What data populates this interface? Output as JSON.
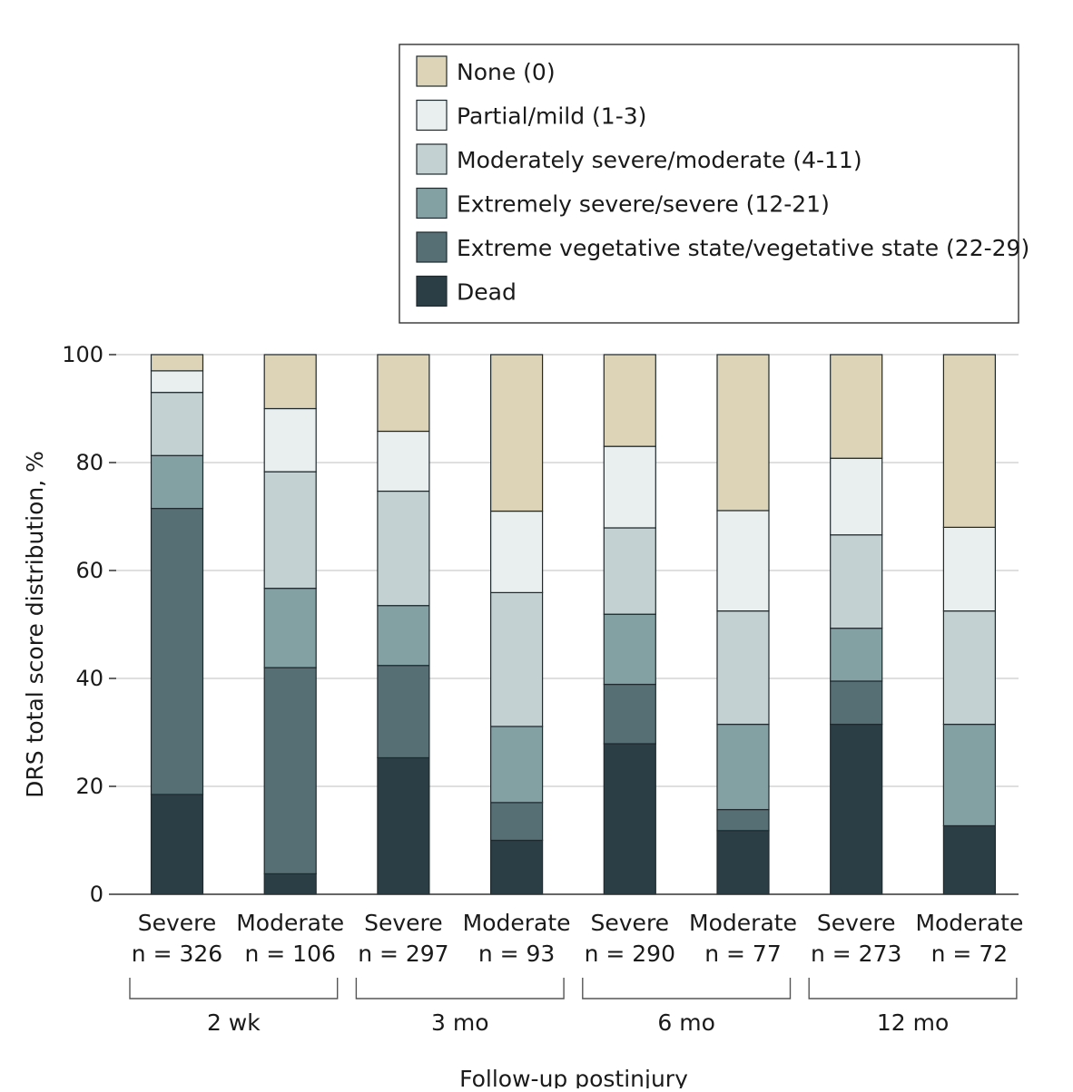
{
  "chart_data": {
    "type": "bar",
    "stacked": true,
    "ylabel": "DRS total score distribution, %",
    "xlabel": "Follow-up postinjury",
    "ylim": [
      0,
      100
    ],
    "yticks": [
      0,
      20,
      40,
      60,
      80,
      100
    ],
    "grid": true,
    "legend_position": "top-right",
    "groups": [
      "2 wk",
      "3 mo",
      "6 mo",
      "12 mo"
    ],
    "categories": [
      {
        "name": "Severe",
        "n": "n = 326",
        "group": "2 wk"
      },
      {
        "name": "Moderate",
        "n": "n = 106",
        "group": "2 wk"
      },
      {
        "name": "Severe",
        "n": "n = 297",
        "group": "3 mo"
      },
      {
        "name": "Moderate",
        "n": "n = 93",
        "group": "3 mo"
      },
      {
        "name": "Severe",
        "n": "n = 290",
        "group": "6 mo"
      },
      {
        "name": "Moderate",
        "n": "n = 77",
        "group": "6 mo"
      },
      {
        "name": "Severe",
        "n": "n = 273",
        "group": "12 mo"
      },
      {
        "name": "Moderate",
        "n": "n = 72",
        "group": "12 mo"
      }
    ],
    "series": [
      {
        "name": "Dead",
        "color": "#2b3e45",
        "values": [
          18.5,
          3.8,
          25.3,
          10.0,
          27.9,
          11.8,
          31.5,
          12.7
        ]
      },
      {
        "name": "Extreme vegetative state/vegetative state (22-29)",
        "color": "#566f74",
        "values": [
          53.0,
          38.2,
          17.1,
          7.0,
          11.0,
          3.9,
          8.0,
          0.0
        ]
      },
      {
        "name": "Extremely severe/severe (12-21)",
        "color": "#83a0a3",
        "values": [
          9.8,
          14.7,
          11.1,
          14.1,
          13.0,
          15.8,
          9.8,
          18.8
        ]
      },
      {
        "name": "Moderately severe/moderate (4-11)",
        "color": "#c3d1d2",
        "values": [
          11.7,
          21.6,
          21.2,
          24.8,
          16.0,
          21.0,
          17.3,
          21.0
        ]
      },
      {
        "name": "Partial/mild (1-3)",
        "color": "#e9eeee",
        "values": [
          4.0,
          11.7,
          11.1,
          15.1,
          15.1,
          18.6,
          14.2,
          15.5
        ]
      },
      {
        "name": "None (0)",
        "color": "#ddd3b6",
        "values": [
          3.0,
          10.0,
          14.2,
          29.0,
          17.0,
          28.9,
          19.2,
          32.0
        ]
      }
    ],
    "legend_order": [
      "None (0)",
      "Partial/mild (1-3)",
      "Moderately severe/moderate (4-11)",
      "Extremely severe/severe (12-21)",
      "Extreme vegetative state/vegetative state (22-29)",
      "Dead"
    ]
  }
}
